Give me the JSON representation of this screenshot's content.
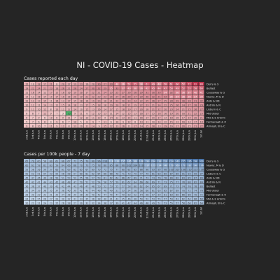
{
  "page": {
    "title": "NI - COVID-19 Cases - Heatmap",
    "background": "#252525"
  },
  "chart_data": [
    {
      "type": "heatmap",
      "title": "Cases reported each day",
      "color_low": "#f3d4d2",
      "color_high": "#c0334d",
      "highlight_color": "#4fb36a",
      "highlight_cell": {
        "row": 7,
        "col": 7
      },
      "rows": [
        "Derry & S",
        "Belfast",
        "Causeway & G",
        "Newry, M & D",
        "Ards & ND",
        "Antrim & N",
        "Lisburn & C",
        "Mid Ulster",
        "Mid & E Antrim",
        "Fermanagh & O",
        "Armagh, B & C"
      ],
      "columns": [
        "2nd Jun",
        "3rd Jun",
        "4th Jun",
        "5th Jun",
        "6th Jun",
        "7th Jun",
        "8th Jun",
        "9th Jun",
        "10th Jun",
        "11th Jun",
        "12th Jun",
        "13th Jun",
        "14th Jun",
        "15th Jun",
        "16th Jun",
        "17th Jun",
        "18th Jun",
        "19th Jun",
        "20th Jun",
        "21st Jun",
        "22nd Jun",
        "23rd Jun",
        "24th Jun",
        "25th Jun",
        "26th Jun",
        "27th Jun",
        "28th Jun",
        "29th Jun",
        "30th Jun",
        "1st Jul"
      ],
      "values": [
        [
          15,
          10,
          18,
          17,
          21,
          8,
          20,
          17,
          19,
          23,
          16,
          20,
          30,
          27,
          33,
          40,
          36,
          51,
          55,
          38,
          61,
          49,
          40,
          58,
          61,
          66,
          52,
          72,
          92,
          88
        ],
        [
          19,
          22,
          24,
          21,
          23,
          18,
          26,
          21,
          28,
          24,
          27,
          30,
          32,
          29,
          35,
          33,
          37,
          40,
          38,
          36,
          42,
          45,
          44,
          47,
          50,
          49,
          52,
          55,
          58,
          60
        ],
        [
          11,
          16,
          14,
          12,
          17,
          15,
          18,
          16,
          19,
          20,
          17,
          22,
          21,
          24,
          23,
          25,
          27,
          26,
          28,
          29,
          31,
          30,
          33,
          34,
          32,
          36,
          38,
          37,
          40,
          41
        ],
        [
          13,
          12,
          16,
          14,
          15,
          17,
          18,
          16,
          20,
          19,
          21,
          22,
          20,
          23,
          25,
          24,
          26,
          28,
          27,
          29,
          30,
          32,
          31,
          33,
          35,
          34,
          36,
          38,
          37,
          39
        ],
        [
          12,
          14,
          13,
          15,
          11,
          16,
          14,
          17,
          15,
          18,
          16,
          19,
          20,
          18,
          21,
          22,
          20,
          23,
          24,
          22,
          25,
          26,
          27,
          25,
          28,
          29,
          30,
          28,
          31,
          32
        ],
        [
          10,
          12,
          11,
          14,
          13,
          12,
          15,
          14,
          16,
          13,
          17,
          15,
          18,
          16,
          19,
          20,
          18,
          21,
          19,
          22,
          23,
          21,
          24,
          22,
          25,
          26,
          24,
          27,
          28,
          29
        ],
        [
          9,
          11,
          10,
          12,
          8,
          13,
          11,
          12,
          14,
          10,
          15,
          13,
          16,
          14,
          17,
          15,
          18,
          19,
          17,
          20,
          18,
          21,
          22,
          20,
          23,
          24,
          21,
          25,
          26,
          27
        ],
        [
          6,
          8,
          7,
          12,
          9,
          7,
          3,
          10,
          9,
          11,
          8,
          12,
          10,
          13,
          11,
          14,
          12,
          15,
          13,
          16,
          17,
          15,
          18,
          16,
          19,
          20,
          18,
          21,
          22,
          23
        ],
        [
          8,
          7,
          9,
          6,
          10,
          8,
          9,
          11,
          7,
          12,
          10,
          11,
          13,
          9,
          14,
          12,
          13,
          15,
          11,
          16,
          14,
          15,
          17,
          13,
          18,
          16,
          17,
          19,
          20,
          21
        ],
        [
          5,
          7,
          6,
          8,
          4,
          9,
          6,
          7,
          10,
          5,
          8,
          9,
          7,
          11,
          6,
          10,
          9,
          12,
          8,
          13,
          11,
          10,
          14,
          12,
          15,
          13,
          16,
          14,
          17,
          18
        ],
        [
          9,
          8,
          10,
          7,
          11,
          9,
          12,
          8,
          13,
          10,
          11,
          14,
          9,
          15,
          12,
          13,
          16,
          11,
          17,
          14,
          15,
          18,
          13,
          19,
          16,
          17,
          20,
          15,
          21,
          22
        ]
      ]
    },
    {
      "type": "heatmap",
      "title": "Cases per 100k people - 7 day",
      "color_low": "#c5d7eb",
      "color_high": "#4b76ab",
      "rows": [
        "Derry & S",
        "Newry, M & D",
        "Causeway & G",
        "Lisburn & C",
        "Ards & ND",
        "Antrim & N",
        "Belfast",
        "Mid Ulster",
        "Fermanagh & O",
        "Mid & E Antrim",
        "Armagh, B & C"
      ],
      "columns": [
        "2nd Jun",
        "3rd Jun",
        "4th Jun",
        "5th Jun",
        "6th Jun",
        "7th Jun",
        "8th Jun",
        "9th Jun",
        "10th Jun",
        "11th Jun",
        "12th Jun",
        "13th Jun",
        "14th Jun",
        "15th Jun",
        "16th Jun",
        "17th Jun",
        "18th Jun",
        "19th Jun",
        "20th Jun",
        "21st Jun",
        "22nd Jun",
        "23rd Jun",
        "24th Jun",
        "25th Jun",
        "26th Jun",
        "27th Jun",
        "28th Jun",
        "29th Jun",
        "30th Jun",
        "1st Jul"
      ],
      "values": [
        [
          65,
          70,
          60,
          56,
          60,
          61,
          66,
          67,
          72,
          75,
          79,
          90,
          96,
          110,
          118,
          133,
          155,
          166,
          180,
          188,
          199,
          204,
          198,
          210,
          224,
          240,
          255,
          286,
          296,
          300
        ],
        [
          60,
          62,
          58,
          61,
          63,
          59,
          64,
          66,
          68,
          70,
          73,
          75,
          78,
          80,
          85,
          88,
          90,
          102,
          104,
          110,
          117,
          123,
          134,
          140,
          150,
          160,
          170,
          182,
          190,
          196
        ],
        [
          55,
          58,
          56,
          59,
          57,
          60,
          61,
          63,
          62,
          65,
          67,
          69,
          70,
          72,
          75,
          77,
          80,
          82,
          85,
          88,
          90,
          93,
          95,
          98,
          100,
          103,
          106,
          110,
          113,
          116
        ],
        [
          50,
          52,
          51,
          54,
          53,
          55,
          56,
          58,
          57,
          60,
          61,
          62,
          64,
          66,
          68,
          70,
          71,
          73,
          75,
          77,
          79,
          81,
          83,
          85,
          87,
          89,
          91,
          93,
          95,
          97
        ],
        [
          45,
          47,
          46,
          49,
          48,
          50,
          51,
          53,
          52,
          55,
          56,
          57,
          59,
          61,
          62,
          64,
          66,
          67,
          69,
          71,
          73,
          74,
          76,
          78,
          80,
          82,
          83,
          85,
          87,
          89
        ],
        [
          40,
          42,
          41,
          44,
          43,
          45,
          46,
          48,
          47,
          50,
          51,
          52,
          54,
          56,
          57,
          59,
          61,
          62,
          64,
          66,
          68,
          69,
          71,
          73,
          75,
          77,
          78,
          80,
          82,
          84
        ],
        [
          36,
          38,
          37,
          40,
          39,
          41,
          42,
          44,
          43,
          46,
          47,
          48,
          50,
          52,
          53,
          55,
          57,
          58,
          60,
          62,
          64,
          65,
          67,
          69,
          71,
          73,
          74,
          76,
          78,
          80
        ],
        [
          32,
          34,
          33,
          36,
          35,
          37,
          38,
          40,
          39,
          42,
          43,
          44,
          46,
          48,
          49,
          51,
          53,
          54,
          56,
          58,
          60,
          61,
          63,
          65,
          67,
          69,
          70,
          72,
          74,
          76
        ],
        [
          28,
          30,
          29,
          32,
          31,
          33,
          34,
          36,
          35,
          38,
          39,
          40,
          42,
          44,
          45,
          47,
          49,
          50,
          52,
          54,
          56,
          57,
          59,
          61,
          63,
          65,
          66,
          68,
          70,
          72
        ],
        [
          24,
          26,
          25,
          28,
          27,
          29,
          30,
          32,
          31,
          34,
          35,
          36,
          38,
          40,
          41,
          43,
          45,
          46,
          48,
          50,
          52,
          53,
          55,
          57,
          59,
          61,
          62,
          64,
          66,
          68
        ],
        [
          20,
          22,
          21,
          24,
          23,
          25,
          26,
          28,
          27,
          30,
          31,
          32,
          34,
          36,
          37,
          39,
          41,
          42,
          44,
          46,
          48,
          49,
          51,
          53,
          55,
          57,
          58,
          60,
          62,
          64
        ]
      ]
    }
  ]
}
